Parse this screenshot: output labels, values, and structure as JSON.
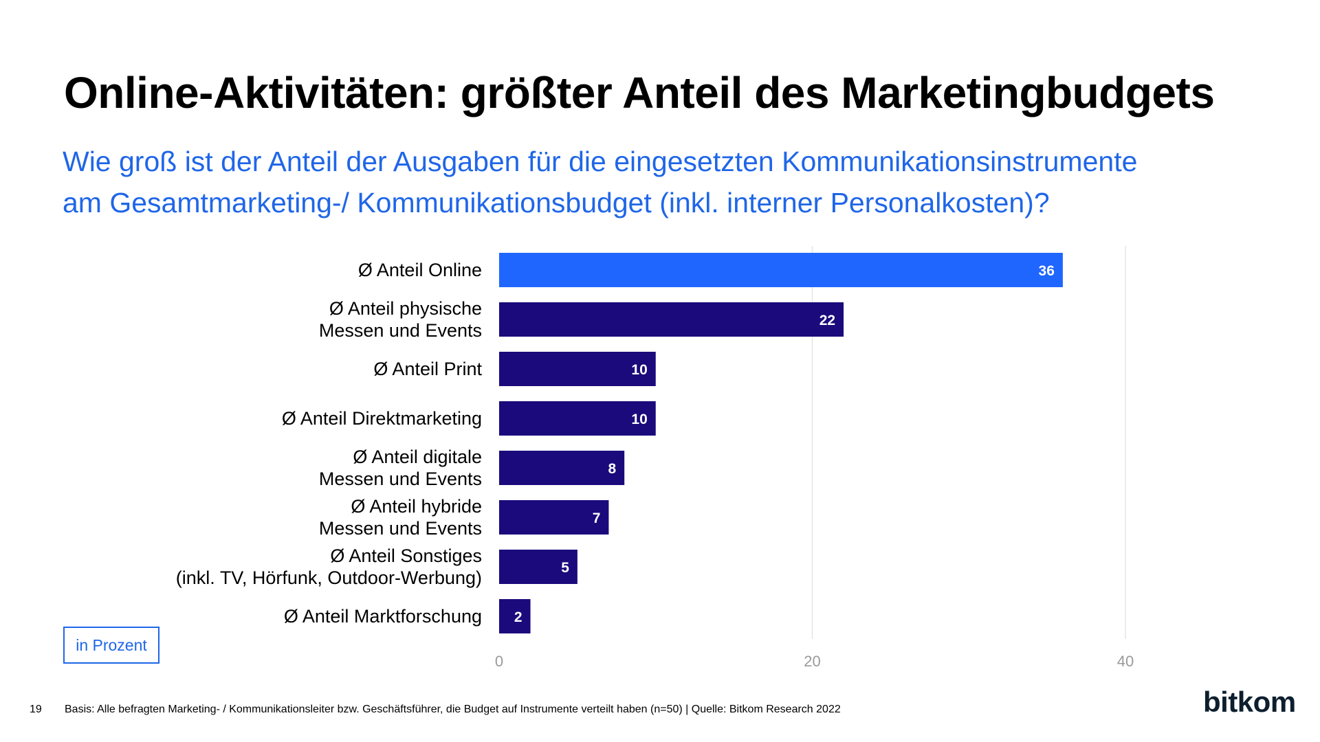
{
  "header": {
    "title": "Online-Aktivitäten: größter Anteil des Marketingbudgets",
    "subtitle_line1": "Wie groß ist der Anteil der Ausgaben für die eingesetzten Kommunikationsinstrumente",
    "subtitle_line2": "am Gesamtmarketing-/ Kommunikationsbudget (inkl. interner Personalkosten)?"
  },
  "chart_data": {
    "type": "bar",
    "orientation": "horizontal",
    "categories": [
      [
        "Ø Anteil Online"
      ],
      [
        "Ø Anteil physische",
        "Messen und Events"
      ],
      [
        "Ø Anteil Print"
      ],
      [
        "Ø Anteil Direktmarketing"
      ],
      [
        "Ø Anteil digitale",
        "Messen und Events"
      ],
      [
        "Ø Anteil hybride",
        "Messen und Events"
      ],
      [
        "Ø Anteil Sonstiges",
        "(inkl. TV, Hörfunk, Outdoor-Werbung)"
      ],
      [
        "Ø Anteil Marktforschung"
      ]
    ],
    "values": [
      36,
      22,
      10,
      10,
      8,
      7,
      5,
      2
    ],
    "highlight_index": 0,
    "colors": {
      "highlight": "#1f66ff",
      "default": "#1a0a7c",
      "grid": "#e6e6e6"
    },
    "x_ticks": [
      "0",
      "20",
      "40"
    ],
    "xlim": [
      0,
      40
    ],
    "grid": true,
    "unit_label": "in Prozent"
  },
  "footer": {
    "page_number": "19",
    "note": "Basis: Alle befragten Marketing- / Kommunikationsleiter bzw. Geschäftsführer, die Budget auf Instrumente verteilt haben (n=50) | Quelle: Bitkom Research 2022",
    "logo": "bitkom"
  }
}
